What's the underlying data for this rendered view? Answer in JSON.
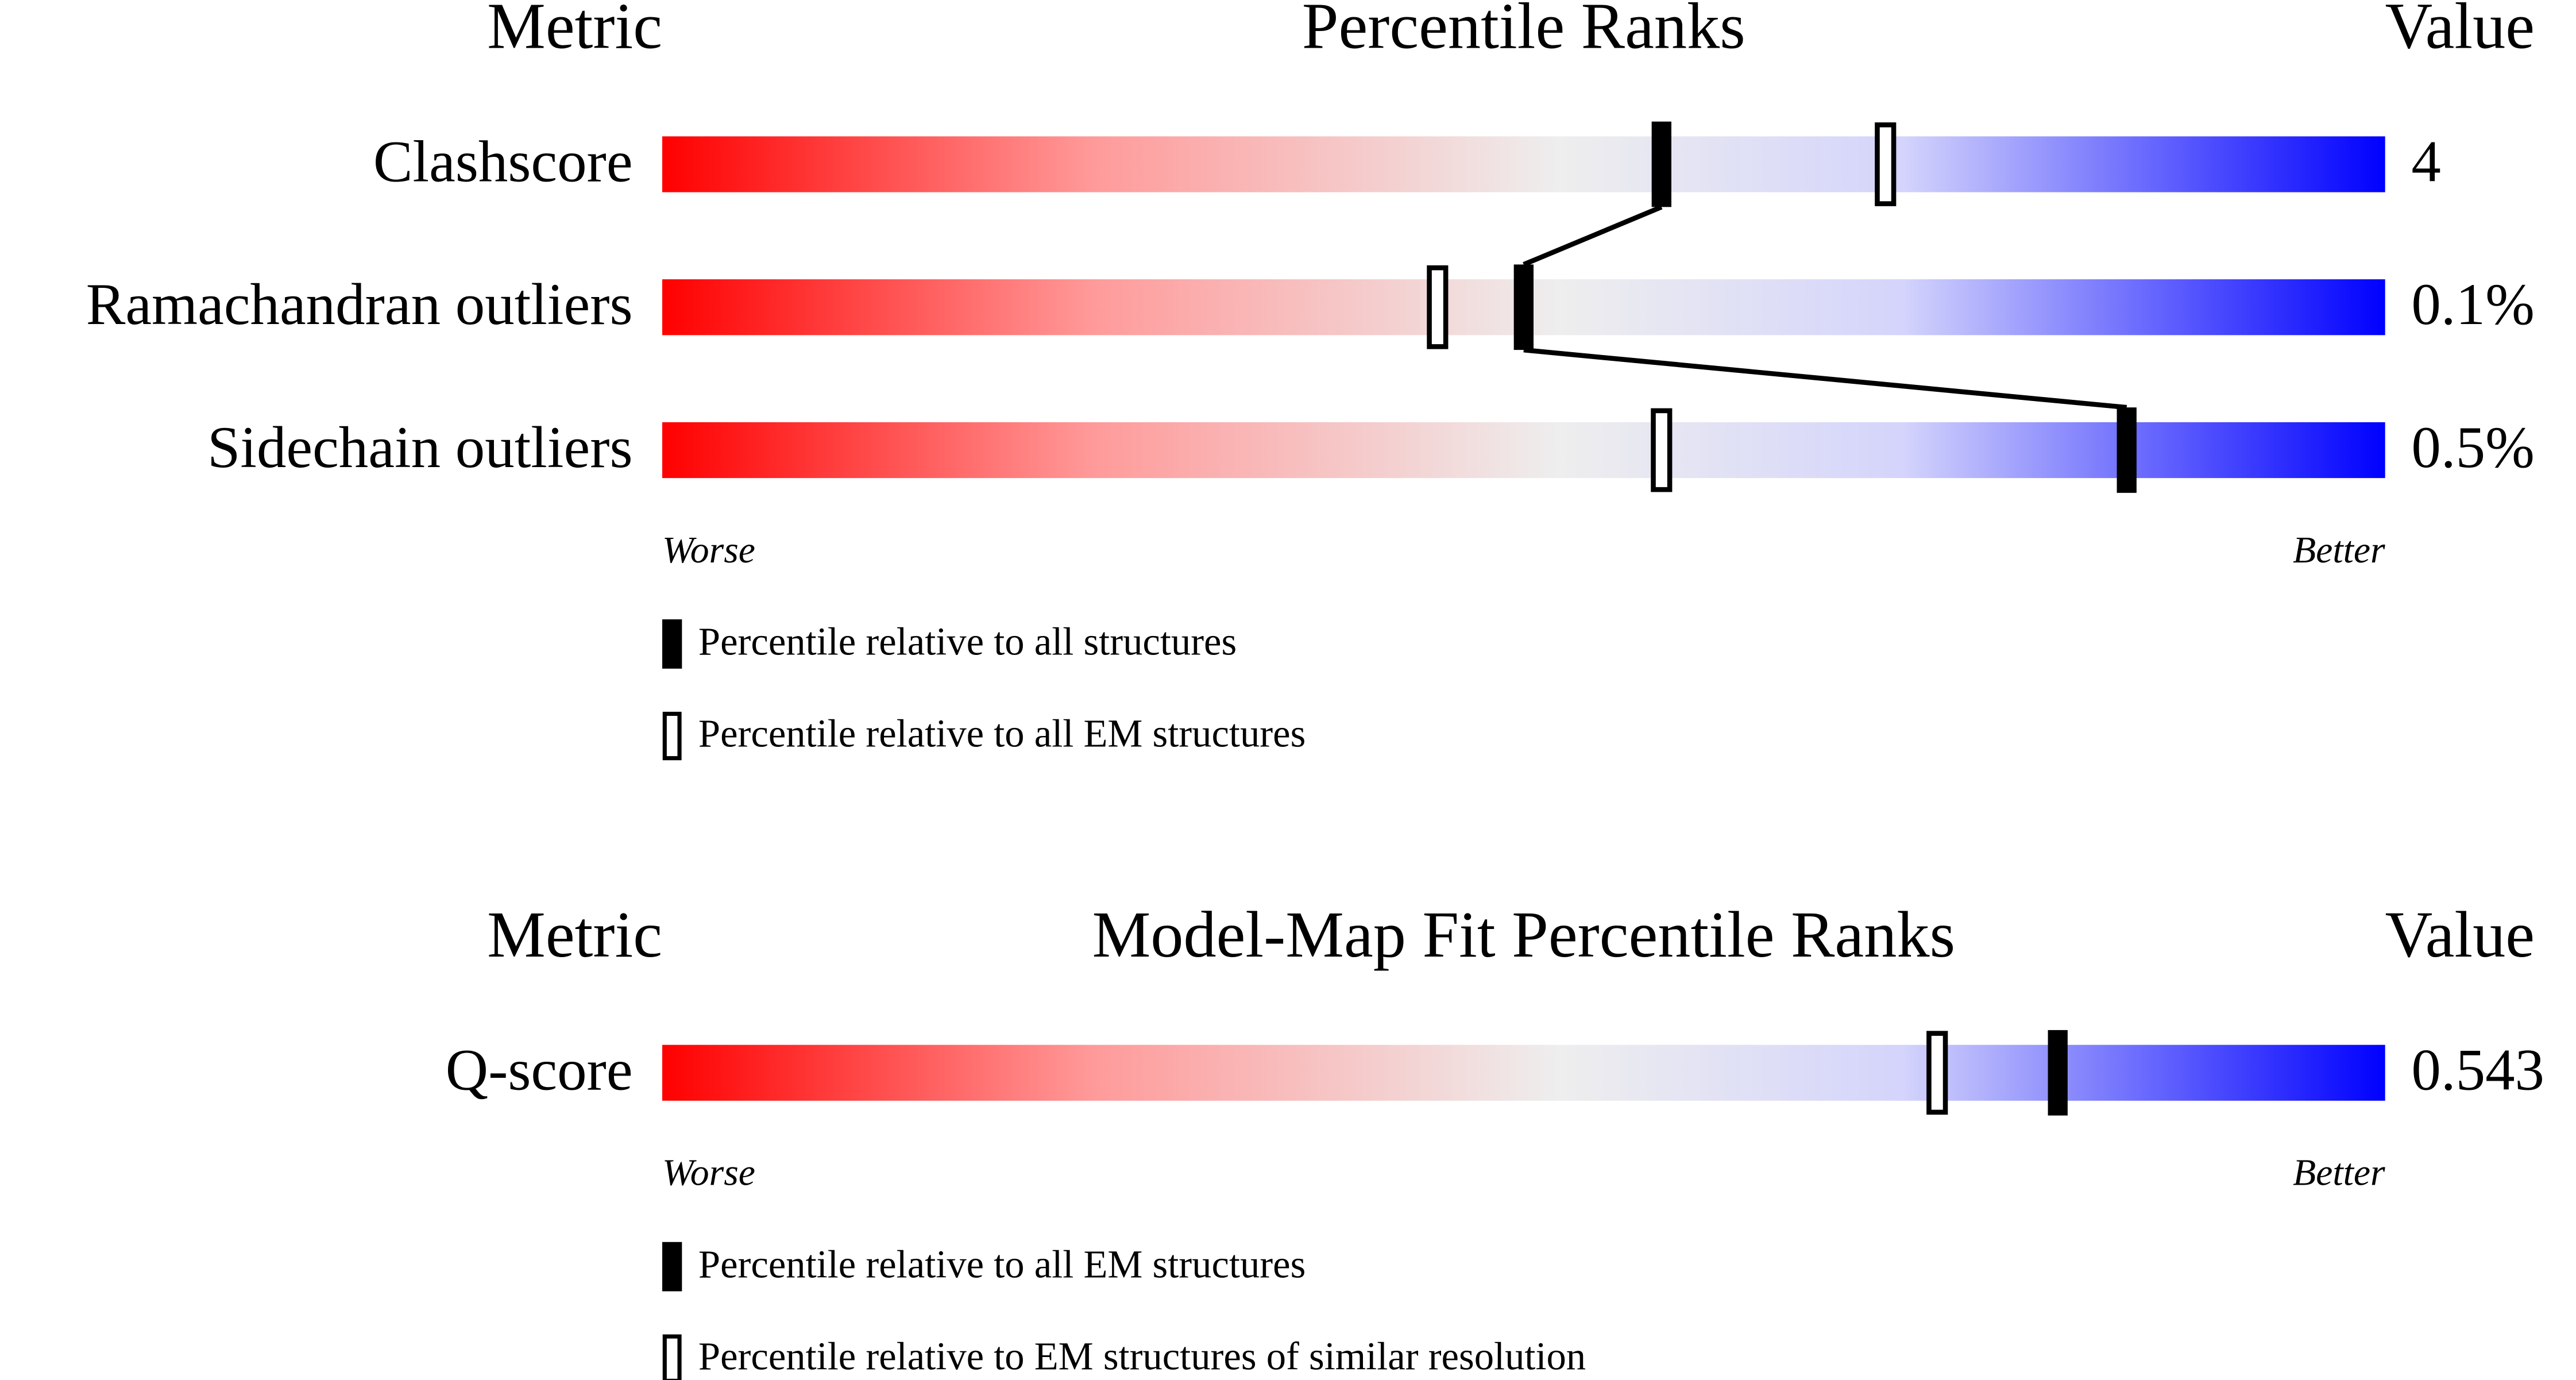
{
  "chart_data": [
    {
      "type": "percentile",
      "title": "Percentile Ranks",
      "metric_header": "Metric",
      "value_header": "Value",
      "xlim": [
        0,
        100
      ],
      "low_label": "Worse",
      "high_label": "Better",
      "categories": [
        "Clashscore",
        "Ramachandran outliers",
        "Sidechain outliers"
      ],
      "metric_values": [
        "4",
        "0.1%",
        "0.5%"
      ],
      "series": [
        {
          "name": "Percentile relative to all structures",
          "color": "#000000",
          "filled": true,
          "values": [
            58,
            50,
            85
          ]
        },
        {
          "name": "Percentile relative to all EM structures",
          "color": "#000000",
          "filled": false,
          "values": [
            71,
            45,
            58
          ]
        }
      ]
    },
    {
      "type": "percentile",
      "title": "Model-Map Fit Percentile Ranks",
      "metric_header": "Metric",
      "value_header": "Value",
      "xlim": [
        0,
        100
      ],
      "low_label": "Worse",
      "high_label": "Better",
      "categories": [
        "Q-score"
      ],
      "metric_values": [
        "0.543"
      ],
      "series": [
        {
          "name": "Percentile relative to all EM structures",
          "color": "#000000",
          "filled": true,
          "values": [
            81
          ]
        },
        {
          "name": "Percentile relative to EM structures of similar resolution",
          "color": "#000000",
          "filled": false,
          "values": [
            74
          ]
        }
      ]
    }
  ]
}
